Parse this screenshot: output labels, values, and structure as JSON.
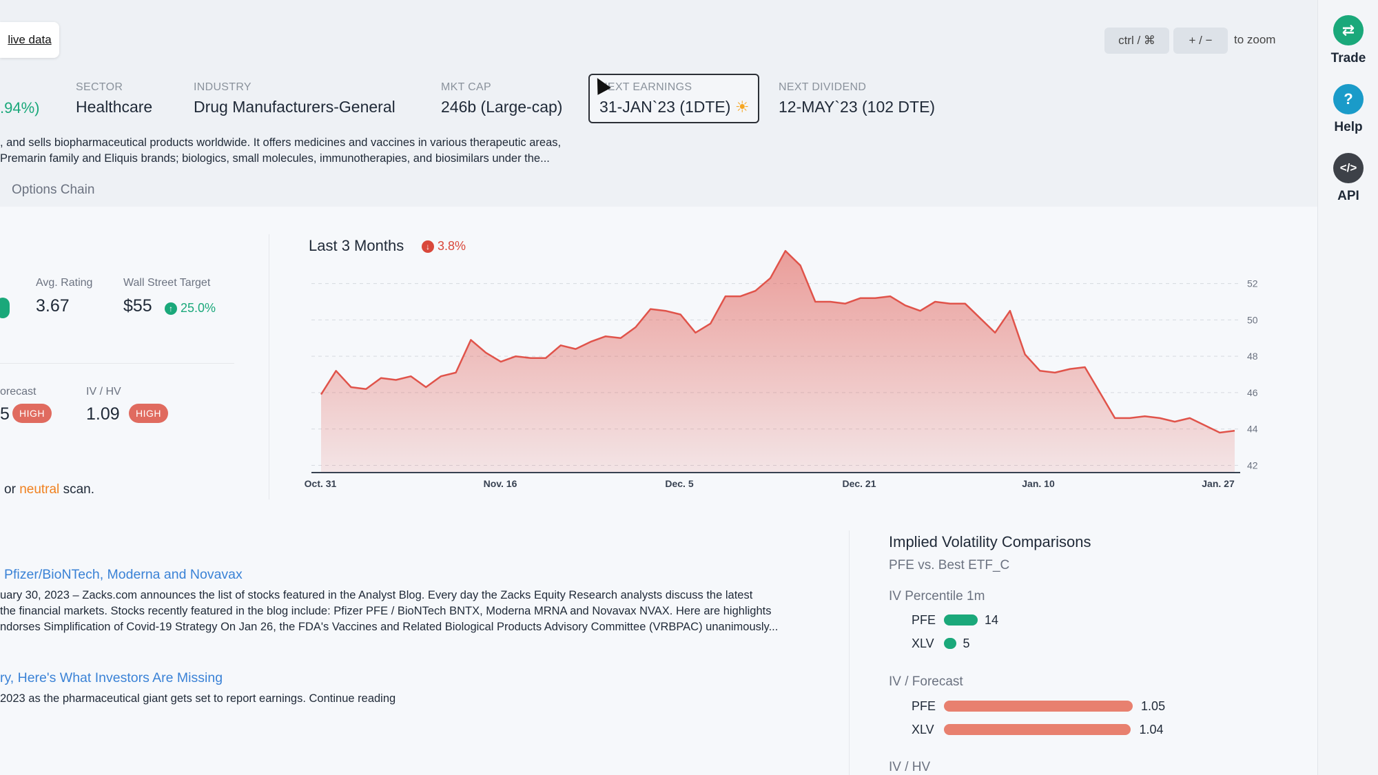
{
  "header": {
    "live_data_link": "live data",
    "zoom_keys": "ctrl / ⌘",
    "zoom_plusminus": "+ / −",
    "zoom_text": "to zoom",
    "change_pct": ".94%)",
    "sector_label": "SECTOR",
    "sector_value": "Healthcare",
    "industry_label": "INDUSTRY",
    "industry_value": "Drug Manufacturers-General",
    "mktcap_label": "MKT CAP",
    "mktcap_value": "246b (Large-cap)",
    "earnings_label": "NEXT EARNINGS",
    "earnings_value": "31-JAN`23 (1DTE)",
    "dividend_label": "NEXT DIVIDEND",
    "dividend_value": "12-MAY`23 (102 DTE)",
    "description_line1": ", and sells biopharmaceutical products worldwide. It offers medicines and vaccines in various therapeutic areas,",
    "description_line2": " Premarin family and Eliquis brands; biologics, small molecules, immunotherapies, and biosimilars under the...",
    "options_chain_tab": "Options Chain"
  },
  "stats": {
    "avg_rating_label": "Avg. Rating",
    "avg_rating_value": "3.67",
    "target_label": "Wall Street Target",
    "target_value": "$55",
    "target_pct": "25.0%",
    "forecast_label": "orecast",
    "forecast_value": "5",
    "forecast_badge": "HIGH",
    "ivhv_label": "IV / HV",
    "ivhv_value": "1.09",
    "ivhv_badge": "HIGH",
    "scan_prefix": "or",
    "scan_word": "neutral",
    "scan_suffix": "scan."
  },
  "chart_data": {
    "type": "area",
    "title": "Last 3 Months",
    "change_pct": "3.8%",
    "x_tick_labels": [
      "Oct. 31",
      "Nov. 16",
      "Dec. 5",
      "Dec. 21",
      "Jan. 10",
      "Jan. 27"
    ],
    "y_tick_labels": [
      "52",
      "50",
      "48",
      "46",
      "44",
      "42"
    ],
    "ylim": [
      41.6,
      53.2
    ],
    "grid": true,
    "color": "#e0534a",
    "values": [
      45.9,
      47.2,
      46.3,
      46.2,
      46.8,
      46.7,
      46.9,
      46.3,
      46.9,
      47.1,
      48.9,
      48.2,
      47.7,
      48.0,
      47.9,
      47.9,
      48.6,
      48.4,
      48.8,
      49.1,
      49.0,
      49.6,
      50.6,
      50.5,
      50.3,
      49.3,
      49.8,
      51.3,
      51.3,
      51.6,
      52.3,
      53.8,
      53.0,
      51.0,
      51.0,
      50.9,
      51.2,
      51.2,
      51.3,
      50.8,
      50.5,
      51.0,
      50.9,
      50.9,
      50.1,
      49.3,
      50.5,
      48.1,
      47.2,
      47.1,
      47.3,
      47.4,
      46.0,
      44.6,
      44.6,
      44.7,
      44.6,
      44.4,
      44.6,
      44.2,
      43.8,
      43.9
    ]
  },
  "news": [
    {
      "title": " Pfizer/BioNTech, Moderna and Novavax",
      "line1": "uary 30, 2023 – Zacks.com announces the list of stocks featured in the Analyst Blog. Every day the Zacks Equity Research analysts discuss the latest",
      "line2": "the financial markets. Stocks recently featured in the blog include: Pfizer PFE / BioNTech BNTX, Moderna MRNA and Novavax NVAX. Here are highlights",
      "line3": "ndorses Simplification of Covid-19 Strategy On Jan 26, the FDA's Vaccines and Related Biological Products Advisory Committee (VRBPAC) unanimously..."
    },
    {
      "title": "ry, Here's What Investors Are Missing",
      "line1": " 2023 as the pharmaceutical giant gets set to report earnings. Continue reading"
    }
  ],
  "iv_comparisons": {
    "title": "Implied Volatility Comparisons",
    "subtitle": "PFE vs. Best ETF_C",
    "percentile_label": "IV Percentile 1m",
    "percentile": [
      {
        "symbol": "PFE",
        "value": "14",
        "bar": 14
      },
      {
        "symbol": "XLV",
        "value": "5",
        "bar": 5
      }
    ],
    "forecast_label": "IV / Forecast",
    "forecast": [
      {
        "symbol": "PFE",
        "value": "1.05",
        "bar": 1.05
      },
      {
        "symbol": "XLV",
        "value": "1.04",
        "bar": 1.04
      }
    ],
    "ivhv_label": "IV / HV",
    "green": "#1aa87a",
    "red": "#e8806f"
  },
  "rail": {
    "trade_label": "Trade",
    "trade_icon": "⇄",
    "help_label": "Help",
    "help_icon": "?",
    "api_label": "API",
    "api_icon": "</>",
    "trade_color": "#1aa87a",
    "help_color": "#1a9bc9",
    "api_color": "#3d4148"
  }
}
